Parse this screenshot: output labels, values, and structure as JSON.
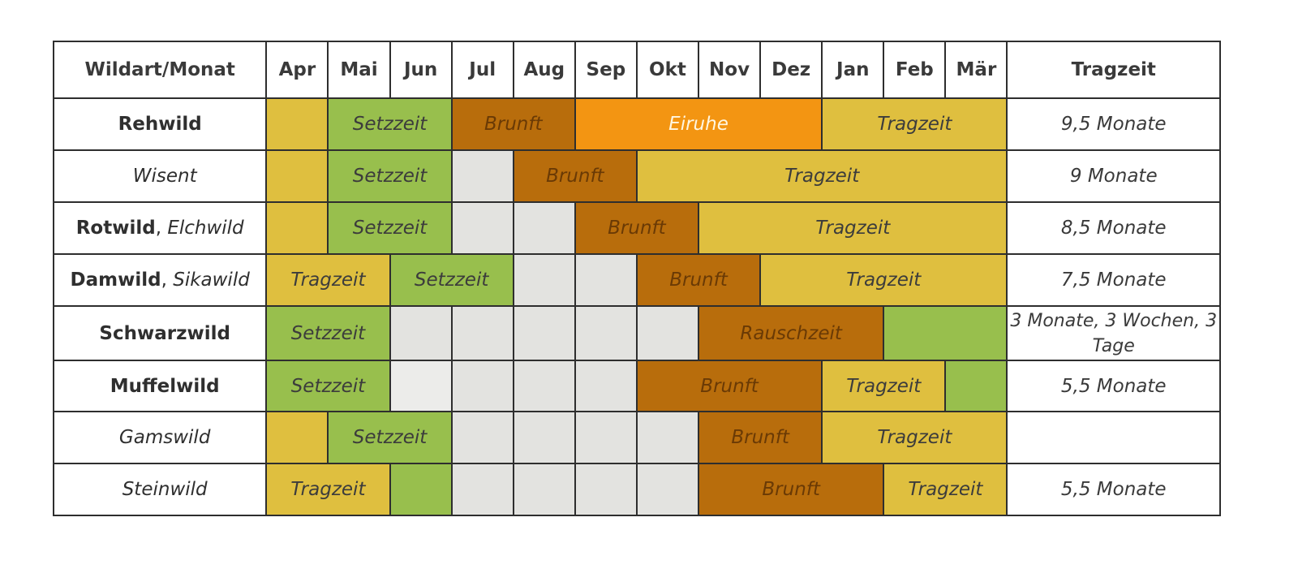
{
  "header": {
    "corner": "Wildart/Monat",
    "months": [
      "Apr",
      "Mai",
      "Jun",
      "Jul",
      "Aug",
      "Sep",
      "Okt",
      "Nov",
      "Dez",
      "Jan",
      "Feb",
      "Mär"
    ],
    "gestation_header": "Tragzeit"
  },
  "colors": {
    "gestation": "#dfbf3f",
    "birth": "#98bf4d",
    "rut": "#b86d0c",
    "delayed_implantation": "#f39512",
    "empty": "#e3e3e0"
  },
  "rows": [
    {
      "name_bold": "Rehwild",
      "name_italic": "",
      "segments": [
        {
          "type": "gestation",
          "span": 1,
          "label": ""
        },
        {
          "type": "birth",
          "span": 2,
          "label": "Setzzeit"
        },
        {
          "type": "rut",
          "span": 2,
          "label": "Brunft"
        },
        {
          "type": "delay",
          "span": 4,
          "label": "Eiruhe"
        },
        {
          "type": "gestation",
          "span": 3,
          "label": "Tragzeit"
        }
      ],
      "gestation": "9,5 Monate"
    },
    {
      "name_bold": "",
      "name_italic": "Wisent",
      "segments": [
        {
          "type": "gestation",
          "span": 1,
          "label": ""
        },
        {
          "type": "birth",
          "span": 2,
          "label": "Setzzeit"
        },
        {
          "type": "empty",
          "span": 1,
          "label": ""
        },
        {
          "type": "rut",
          "span": 2,
          "label": "Brunft"
        },
        {
          "type": "gestation",
          "span": 6,
          "label": "Tragzeit"
        }
      ],
      "gestation": "9 Monate"
    },
    {
      "name_bold": "Rotwild",
      "name_italic": "Elchwild",
      "segments": [
        {
          "type": "gestation",
          "span": 1,
          "label": ""
        },
        {
          "type": "birth",
          "span": 2,
          "label": "Setzzeit"
        },
        {
          "type": "empty",
          "span": 1,
          "label": ""
        },
        {
          "type": "empty",
          "span": 1,
          "label": ""
        },
        {
          "type": "rut",
          "span": 2,
          "label": "Brunft"
        },
        {
          "type": "gestation",
          "span": 5,
          "label": "Tragzeit"
        }
      ],
      "gestation": "8,5 Monate"
    },
    {
      "name_bold": "Damwild",
      "name_italic": "Sikawild",
      "segments": [
        {
          "type": "gestation",
          "span": 2,
          "label": "Tragzeit"
        },
        {
          "type": "birth",
          "span": 2,
          "label": "Setzzeit"
        },
        {
          "type": "empty",
          "span": 1,
          "label": ""
        },
        {
          "type": "empty",
          "span": 1,
          "label": ""
        },
        {
          "type": "rut",
          "span": 2,
          "label": "Brunft"
        },
        {
          "type": "gestation",
          "span": 4,
          "label": "Tragzeit"
        }
      ],
      "gestation": "7,5 Monate"
    },
    {
      "name_bold": "Schwarzwild",
      "name_italic": "",
      "segments": [
        {
          "type": "birth",
          "span": 2,
          "label": "Setzzeit"
        },
        {
          "type": "empty",
          "span": 1,
          "label": ""
        },
        {
          "type": "empty",
          "span": 1,
          "label": ""
        },
        {
          "type": "empty",
          "span": 1,
          "label": ""
        },
        {
          "type": "empty",
          "span": 1,
          "label": ""
        },
        {
          "type": "empty",
          "span": 1,
          "label": ""
        },
        {
          "type": "rut",
          "span": 3,
          "label": "Rauschzeit"
        },
        {
          "type": "birth",
          "span": 2,
          "label": ""
        }
      ],
      "gestation": "3 Monate, 3 Wochen, 3 Tage"
    },
    {
      "name_bold": "Muffelwild",
      "name_italic": "",
      "segments": [
        {
          "type": "birth",
          "span": 2,
          "label": "Setzzeit"
        },
        {
          "type": "light",
          "span": 1,
          "label": ""
        },
        {
          "type": "empty",
          "span": 1,
          "label": ""
        },
        {
          "type": "empty",
          "span": 1,
          "label": ""
        },
        {
          "type": "empty",
          "span": 1,
          "label": ""
        },
        {
          "type": "rut",
          "span": 3,
          "label": "Brunft"
        },
        {
          "type": "gestation",
          "span": 2,
          "label": "Tragzeit"
        },
        {
          "type": "birth",
          "span": 1,
          "label": ""
        }
      ],
      "gestation": "5,5 Monate"
    },
    {
      "name_bold": "",
      "name_italic": "Gamswild",
      "segments": [
        {
          "type": "gestation",
          "span": 1,
          "label": ""
        },
        {
          "type": "birth",
          "span": 2,
          "label": "Setzzeit"
        },
        {
          "type": "empty",
          "span": 1,
          "label": ""
        },
        {
          "type": "empty",
          "span": 1,
          "label": ""
        },
        {
          "type": "empty",
          "span": 1,
          "label": ""
        },
        {
          "type": "empty",
          "span": 1,
          "label": ""
        },
        {
          "type": "rut",
          "span": 2,
          "label": "Brunft"
        },
        {
          "type": "gestation",
          "span": 3,
          "label": "Tragzeit"
        }
      ],
      "gestation": ""
    },
    {
      "name_bold": "",
      "name_italic": "Steinwild",
      "segments": [
        {
          "type": "gestation",
          "span": 2,
          "label": "Tragzeit"
        },
        {
          "type": "birth",
          "span": 1,
          "label": ""
        },
        {
          "type": "empty",
          "span": 1,
          "label": ""
        },
        {
          "type": "empty",
          "span": 1,
          "label": ""
        },
        {
          "type": "empty",
          "span": 1,
          "label": ""
        },
        {
          "type": "empty",
          "span": 1,
          "label": ""
        },
        {
          "type": "rut",
          "span": 3,
          "label": "Brunft"
        },
        {
          "type": "gestation",
          "span": 2,
          "label": "Tragzeit"
        }
      ],
      "gestation": "5,5 Monate"
    }
  ]
}
